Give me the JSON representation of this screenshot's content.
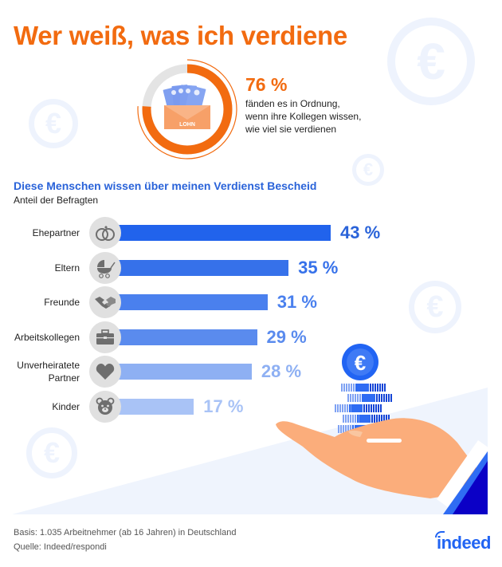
{
  "title": "Wer weiß, was ich verdiene",
  "kpi": {
    "value": "76 %",
    "fraction": 0.76,
    "text_lines": [
      "fänden es in Ordnung,",
      "wenn ihre Kollegen wissen,",
      "wie viel sie verdienen"
    ],
    "envelope_label": "LOHN"
  },
  "colors": {
    "orange": "#f26b10",
    "donut_track": "#e4e4e4",
    "blue_title": "#2a63d9",
    "icon_bg": "#e0e0e0",
    "icon_fg": "#6e6e6e",
    "bg_euro": "#eef3fd"
  },
  "chart_data": {
    "type": "bar",
    "orientation": "horizontal",
    "title": "Diese Menschen wissen über meinen Verdienst Bescheid",
    "subtitle": "Anteil der Befragten",
    "categories": [
      "Ehepartner",
      "Eltern",
      "Freunde",
      "Arbeitskollegen",
      "Unverheiratete Partner",
      "Kinder"
    ],
    "category_lines": [
      [
        "Ehepartner"
      ],
      [
        "Eltern"
      ],
      [
        "Freunde"
      ],
      [
        "Arbeitskollegen"
      ],
      [
        "Unverheiratete",
        "Partner"
      ],
      [
        "Kinder"
      ]
    ],
    "values": [
      43,
      35,
      31,
      29,
      28,
      17
    ],
    "value_labels": [
      "43 %",
      "35 %",
      "31 %",
      "29 %",
      "28 %",
      "17 %"
    ],
    "icons": [
      "rings-icon",
      "stroller-icon",
      "handshake-icon",
      "briefcase-icon",
      "heart-icon",
      "teddy-bear-icon"
    ],
    "bar_colors": [
      "#2163ec",
      "#3671ea",
      "#4a80ee",
      "#5a8bee",
      "#8eb0f3",
      "#a9c3f6"
    ],
    "label_colors": [
      "#2a63d9",
      "#3671ea",
      "#4a80ee",
      "#5a8bee",
      "#8eb0f3",
      "#a9c3f6"
    ],
    "unit": "%",
    "xlim": [
      0,
      43
    ]
  },
  "footer": {
    "basis": "Basis: 1.035 Arbeitnehmer (ab 16 Jahren) in Deutschland",
    "source": "Quelle: Indeed/respondi"
  },
  "logo": {
    "text": "indeed"
  },
  "illustration": {
    "coin_symbol": "€"
  }
}
